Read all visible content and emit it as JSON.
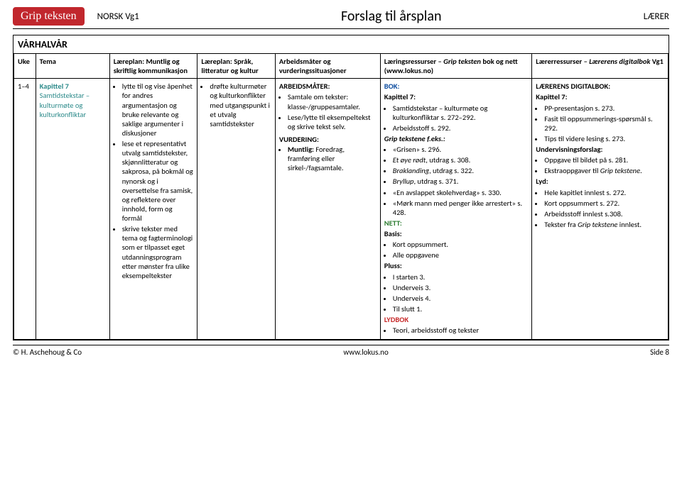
{
  "header": {
    "logo": "Grip teksten",
    "course": "NORSK Vg1",
    "title": "Forslag til årsplan",
    "role": "LÆRER"
  },
  "semester": "VÅRHALVÅR",
  "columns": {
    "uke": "Uke",
    "tema": "Tema",
    "muntlig": "Læreplan: Muntlig og skriftlig kommunikasjon",
    "sprak": "Læreplan: Språk, litteratur og kultur",
    "arbeid": "Arbeidsmåter og vurderingssituasjoner",
    "ressurser": "Læringsressurser – Grip teksten bok og nett (www.lokus.no)",
    "laerer": "Lærerressurser – Lærerens digitalbok Vg1"
  },
  "row": {
    "uke": "1–4",
    "tema_title": "Kapittel 7",
    "tema_sub": "Samtidstekstar – kulturmøte og kulturkonfliktar",
    "muntlig": {
      "b1": "lytte til og vise åpenhet for andres argumentasjon og bruke relevante og saklige argumenter i diskusjoner",
      "b2": "lese et representativt utvalg samtidstekster, skjønnlitteratur og sakprosa, på bokmål og nynorsk og i oversettelse fra samisk, og reflektere over innhold, form og formål",
      "b3": "skrive tekster med tema og fagterminologi som er tilpasset eget utdanningsprogram etter mønster fra ulike eksempeltekster"
    },
    "sprak": {
      "b1": "drøfte kulturmøter og kulturkonflikter med utgangspunkt i et utvalg samtidstekster"
    },
    "arbeid": {
      "hdr1": "ARBEIDSMÅTER:",
      "a1": "Samtale om tekster: klasse-/gruppesamtaler.",
      "a2": "Lese/lytte til eksempeltekst og skrive tekst selv.",
      "hdr2": "VURDERING:",
      "v1_lead": "Muntlig:",
      "v1_rest": " Foredrag, framføring eller sirkel-/fagsamtale."
    },
    "res": {
      "bok": "BOK:",
      "kap": "Kapittel 7:",
      "b1": "Samtidstekstar – kulturmøte og kulturkonfliktar s. 272–292.",
      "b2": "Arbeidsstoff s. 292.",
      "grip": "Grip tekstene f.eks.:",
      "g1": "«Grisen» s. 296.",
      "g2a": "Et øye rødt",
      "g2b": ", utdrag s. 308.",
      "g3a": "Braklanding",
      "g3b": ", utdrag s. 322.",
      "g4a": "Bryllup",
      "g4b": ", utdrag s. 371.",
      "g5": "«En avslappet skolehverdag» s. 330.",
      "g6": "«Mørk mann med penger ikke arrestert» s. 428.",
      "nett": "NETT:",
      "basis": "Basis:",
      "n1": "Kort oppsummert.",
      "n2": "Alle oppgavene",
      "pluss": "Pluss:",
      "p1": "I starten 3.",
      "p2": "Underveis 3.",
      "p3": "Underveis 4.",
      "p4": "Til slutt 1.",
      "lydbok": "LYDBOK",
      "l1": "Teori, arbeidsstoff og tekster"
    },
    "laer": {
      "hdr": "LÆRERENS DIGITALBOK:",
      "kap": "Kapittel 7:",
      "k1": "PP-presentasjon s. 273.",
      "k2": "Fasit til oppsummerings-spørsmål s. 292.",
      "k3": "Tips til videre lesing s. 273.",
      "und": "Undervisningsforslag:",
      "u1": "Oppgave til bildet på s. 281.",
      "u2a": "Ekstraoppgaver til ",
      "u2b": "Grip tekstene",
      "u2c": ".",
      "lyd": "Lyd:",
      "y1": "Hele kapitlet innlest s. 272.",
      "y2": "Kort oppsummert s. 272.",
      "y3": "Arbeidsstoff innlest s.308.",
      "y4a": "Tekster fra ",
      "y4b": "Grip tekstene",
      "y4c": " innlest."
    }
  },
  "footer": {
    "left": "© H. Aschehoug & Co",
    "mid": "www.lokus.no",
    "right": "Side  8"
  }
}
